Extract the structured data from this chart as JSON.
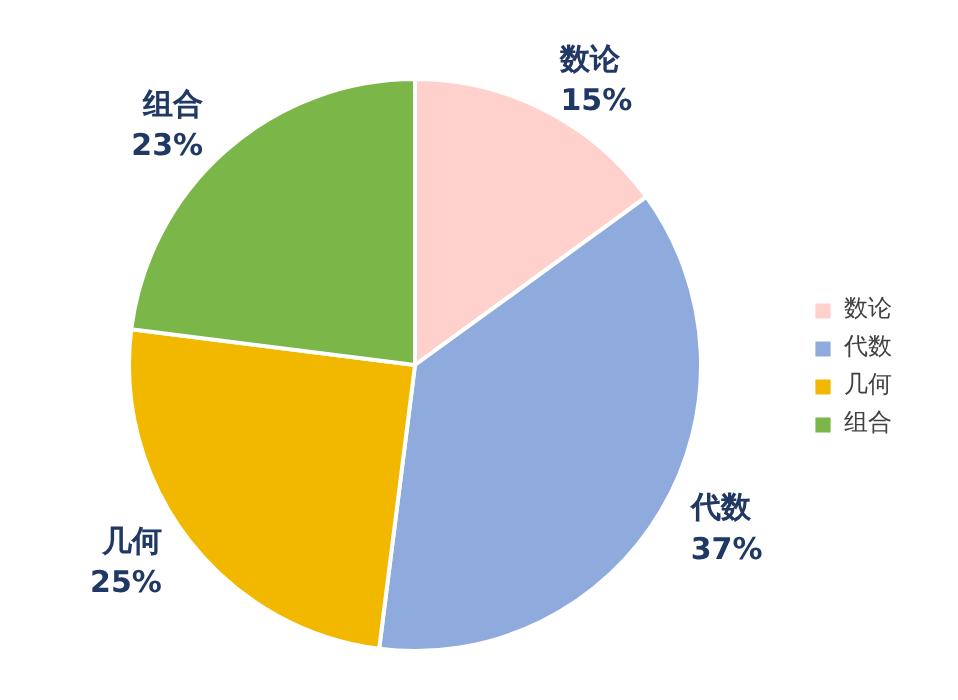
{
  "chart_data": {
    "type": "pie",
    "categories": [
      "数论",
      "代数",
      "几何",
      "组合"
    ],
    "values": [
      15,
      37,
      25,
      23
    ],
    "colors": [
      "#ffd1cc",
      "#8faadc",
      "#f2b800",
      "#7ab648"
    ],
    "value_labels": [
      "15%",
      "37%",
      "25%",
      "23%"
    ],
    "legend": "right"
  }
}
